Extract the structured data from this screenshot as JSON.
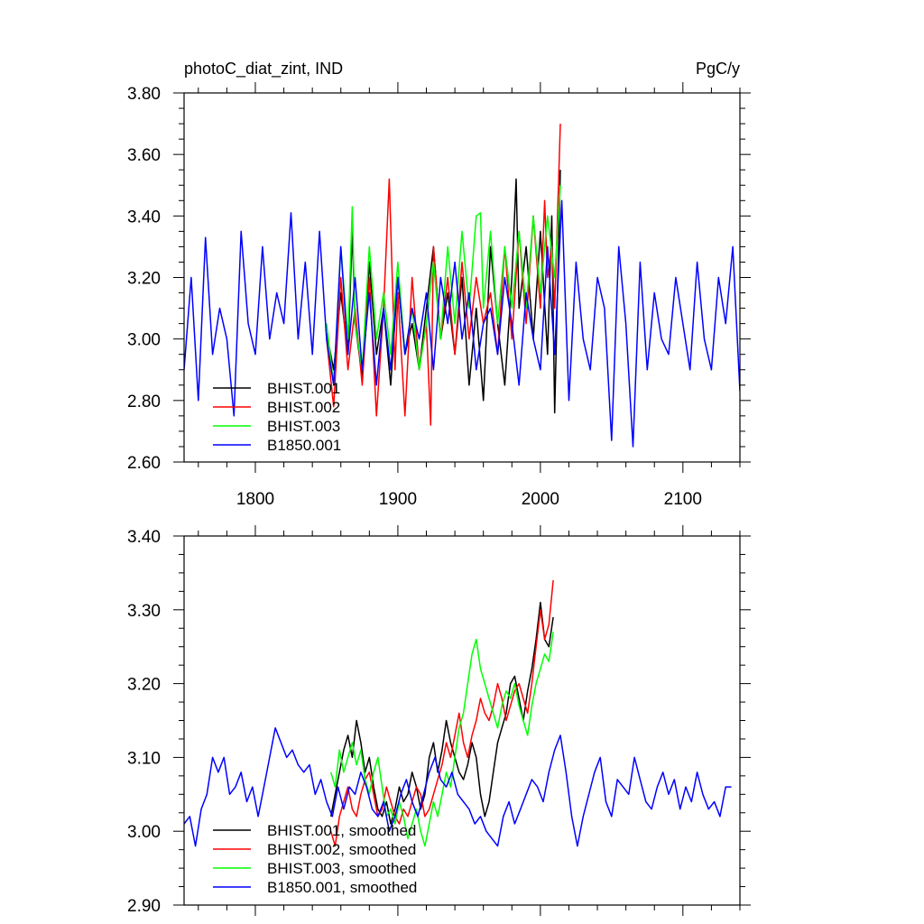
{
  "figure": {
    "top_title_left": "photoC_diat_zint, IND",
    "top_title_right": "PgC/y"
  },
  "chart_data": [
    {
      "type": "line",
      "panel": "top",
      "xlim": [
        1750,
        2140
      ],
      "ylim": [
        2.6,
        3.8
      ],
      "xticks": [
        1800,
        1900,
        2000,
        2100
      ],
      "xtick_labels": [
        "1800",
        "1900",
        "2000",
        "2100"
      ],
      "yticks": [
        2.6,
        2.8,
        3.0,
        3.2,
        3.4,
        3.6,
        3.8
      ],
      "ytick_labels": [
        "2.60",
        "2.80",
        "3.00",
        "3.20",
        "3.40",
        "3.60",
        "3.80"
      ],
      "legend_placement": "lower-left",
      "series": [
        {
          "name": "BHIST.001",
          "color": "#000000",
          "x": [
            1850,
            1855,
            1860,
            1865,
            1868,
            1870,
            1875,
            1880,
            1885,
            1890,
            1895,
            1900,
            1905,
            1910,
            1915,
            1920,
            1925,
            1930,
            1935,
            1940,
            1945,
            1950,
            1955,
            1960,
            1965,
            1970,
            1975,
            1980,
            1983,
            1985,
            1990,
            1995,
            2000,
            2005,
            2008,
            2010,
            2014
          ],
          "values": [
            3.02,
            2.9,
            3.15,
            2.95,
            3.35,
            3.05,
            2.88,
            3.25,
            2.95,
            3.1,
            2.85,
            3.2,
            2.95,
            3.05,
            2.9,
            3.1,
            3.3,
            3.0,
            3.15,
            2.95,
            3.2,
            2.85,
            3.1,
            2.8,
            3.3,
            3.05,
            2.85,
            3.2,
            3.52,
            3.1,
            3.3,
            3.0,
            3.35,
            2.95,
            3.4,
            2.76,
            3.55
          ]
        },
        {
          "name": "BHIST.002",
          "color": "#ff0000",
          "x": [
            1850,
            1855,
            1860,
            1865,
            1870,
            1875,
            1880,
            1885,
            1890,
            1894,
            1898,
            1900,
            1905,
            1910,
            1915,
            1920,
            1923,
            1925,
            1930,
            1935,
            1940,
            1945,
            1950,
            1955,
            1960,
            1965,
            1970,
            1975,
            1980,
            1985,
            1990,
            1995,
            2000,
            2003,
            2005,
            2008,
            2010,
            2014
          ],
          "values": [
            3.0,
            2.78,
            3.2,
            2.9,
            3.1,
            2.85,
            3.2,
            2.75,
            3.1,
            3.52,
            2.9,
            3.15,
            2.75,
            3.2,
            2.9,
            3.05,
            2.72,
            3.3,
            3.0,
            3.2,
            2.95,
            3.25,
            3.0,
            3.2,
            3.05,
            3.15,
            2.95,
            3.3,
            3.0,
            3.35,
            3.05,
            3.4,
            3.1,
            3.45,
            3.2,
            3.3,
            3.1,
            3.7
          ]
        },
        {
          "name": "BHIST.003",
          "color": "#00ff00",
          "x": [
            1850,
            1855,
            1860,
            1865,
            1868,
            1870,
            1875,
            1880,
            1885,
            1890,
            1895,
            1900,
            1905,
            1910,
            1915,
            1920,
            1925,
            1930,
            1935,
            1940,
            1945,
            1950,
            1955,
            1958,
            1960,
            1965,
            1970,
            1975,
            1980,
            1985,
            1990,
            1995,
            2000,
            2005,
            2010,
            2014
          ],
          "values": [
            3.05,
            2.85,
            3.3,
            3.0,
            3.43,
            3.05,
            2.9,
            3.3,
            3.0,
            3.15,
            2.95,
            3.25,
            2.95,
            3.1,
            2.9,
            3.05,
            3.25,
            3.0,
            3.3,
            3.05,
            3.35,
            3.1,
            3.4,
            3.41,
            3.1,
            3.35,
            3.05,
            3.3,
            3.1,
            3.35,
            3.1,
            3.4,
            3.15,
            3.4,
            3.2,
            3.5
          ]
        },
        {
          "name": "B1850.001",
          "color": "#0000ff",
          "x": [
            1750,
            1755,
            1760,
            1765,
            1770,
            1775,
            1780,
            1785,
            1790,
            1795,
            1800,
            1805,
            1810,
            1815,
            1820,
            1825,
            1830,
            1835,
            1840,
            1845,
            1850,
            1855,
            1860,
            1865,
            1870,
            1875,
            1880,
            1885,
            1890,
            1895,
            1900,
            1905,
            1910,
            1915,
            1920,
            1925,
            1930,
            1935,
            1940,
            1945,
            1950,
            1955,
            1960,
            1965,
            1970,
            1975,
            1980,
            1985,
            1990,
            1995,
            2000,
            2005,
            2010,
            2015,
            2020,
            2025,
            2030,
            2035,
            2040,
            2045,
            2050,
            2055,
            2060,
            2065,
            2070,
            2075,
            2080,
            2085,
            2090,
            2095,
            2100,
            2105,
            2110,
            2115,
            2120,
            2125,
            2130,
            2135,
            2140
          ],
          "values": [
            2.9,
            3.2,
            2.8,
            3.33,
            2.95,
            3.1,
            3.0,
            2.75,
            3.35,
            3.05,
            2.95,
            3.3,
            3.0,
            3.15,
            3.05,
            3.41,
            3.0,
            3.25,
            2.95,
            3.35,
            3.0,
            2.85,
            3.3,
            2.95,
            3.2,
            2.9,
            3.15,
            2.85,
            3.1,
            2.9,
            3.2,
            2.95,
            3.1,
            3.0,
            3.15,
            2.9,
            3.2,
            3.05,
            3.25,
            3.0,
            3.15,
            2.9,
            3.05,
            3.1,
            2.95,
            3.2,
            3.05,
            2.85,
            3.15,
            3.0,
            2.9,
            3.3,
            2.95,
            3.45,
            2.8,
            3.25,
            3.0,
            2.9,
            3.2,
            3.1,
            2.67,
            3.3,
            3.05,
            2.65,
            3.25,
            2.9,
            3.15,
            3.0,
            2.95,
            3.2,
            3.05,
            2.9,
            3.25,
            3.0,
            2.9,
            3.2,
            3.05,
            3.3,
            2.83
          ]
        }
      ]
    },
    {
      "type": "line",
      "panel": "bottom",
      "xlim": [
        1750,
        2140
      ],
      "ylim": [
        2.9,
        3.4
      ],
      "xticks": [
        1800,
        1900,
        2000,
        2100
      ],
      "yticks": [
        2.9,
        3.0,
        3.1,
        3.2,
        3.3,
        3.4
      ],
      "ytick_labels": [
        "2.90",
        "3.00",
        "3.10",
        "3.20",
        "3.30",
        "3.40"
      ],
      "legend_placement": "lower-left",
      "series": [
        {
          "name": "BHIST.001, smoothed",
          "color": "#000000",
          "x": [
            1853,
            1856,
            1859,
            1862,
            1865,
            1868,
            1871,
            1874,
            1877,
            1880,
            1883,
            1886,
            1889,
            1892,
            1895,
            1898,
            1901,
            1904,
            1907,
            1910,
            1913,
            1916,
            1919,
            1922,
            1925,
            1928,
            1931,
            1934,
            1937,
            1940,
            1943,
            1946,
            1949,
            1952,
            1955,
            1958,
            1961,
            1964,
            1967,
            1970,
            1973,
            1976,
            1979,
            1982,
            1985,
            1988,
            1991,
            1994,
            1997,
            2000,
            2003,
            2006,
            2009
          ],
          "values": [
            3.02,
            3.05,
            3.08,
            3.11,
            3.13,
            3.1,
            3.15,
            3.12,
            3.08,
            3.1,
            3.06,
            3.03,
            3.02,
            3.04,
            3.01,
            3.03,
            3.06,
            3.04,
            3.05,
            3.08,
            3.06,
            3.03,
            3.05,
            3.1,
            3.12,
            3.08,
            3.11,
            3.15,
            3.12,
            3.1,
            3.08,
            3.07,
            3.09,
            3.12,
            3.1,
            3.05,
            3.02,
            3.04,
            3.08,
            3.12,
            3.14,
            3.16,
            3.2,
            3.21,
            3.18,
            3.15,
            3.19,
            3.22,
            3.26,
            3.31,
            3.26,
            3.25,
            3.29
          ]
        },
        {
          "name": "BHIST.002, smoothed",
          "color": "#ff0000",
          "x": [
            1853,
            1856,
            1859,
            1862,
            1865,
            1868,
            1871,
            1874,
            1877,
            1880,
            1883,
            1886,
            1889,
            1892,
            1895,
            1898,
            1901,
            1904,
            1907,
            1910,
            1913,
            1916,
            1919,
            1922,
            1925,
            1928,
            1931,
            1934,
            1937,
            1940,
            1943,
            1946,
            1949,
            1952,
            1955,
            1958,
            1961,
            1964,
            1967,
            1970,
            1973,
            1976,
            1979,
            1982,
            1985,
            1988,
            1991,
            1994,
            1997,
            2000,
            2003,
            2006,
            2009
          ],
          "values": [
            3.0,
            2.98,
            3.02,
            3.04,
            3.06,
            3.03,
            3.02,
            3.05,
            3.07,
            3.08,
            3.05,
            3.02,
            3.03,
            3.06,
            3.04,
            3.02,
            3.01,
            3.03,
            3.02,
            3.04,
            3.06,
            3.05,
            3.02,
            3.03,
            3.05,
            3.07,
            3.09,
            3.12,
            3.1,
            3.13,
            3.16,
            3.12,
            3.1,
            3.13,
            3.15,
            3.18,
            3.16,
            3.15,
            3.17,
            3.2,
            3.18,
            3.15,
            3.17,
            3.19,
            3.2,
            3.18,
            3.16,
            3.2,
            3.25,
            3.3,
            3.26,
            3.28,
            3.34
          ]
        },
        {
          "name": "BHIST.003, smoothed",
          "color": "#00ff00",
          "x": [
            1853,
            1856,
            1859,
            1862,
            1865,
            1868,
            1871,
            1874,
            1877,
            1880,
            1883,
            1886,
            1889,
            1892,
            1895,
            1898,
            1901,
            1904,
            1907,
            1910,
            1913,
            1916,
            1919,
            1922,
            1925,
            1928,
            1931,
            1934,
            1937,
            1940,
            1943,
            1946,
            1949,
            1952,
            1955,
            1958,
            1961,
            1964,
            1967,
            1970,
            1973,
            1976,
            1979,
            1982,
            1985,
            1988,
            1991,
            1994,
            1997,
            2000,
            2003,
            2006,
            2009
          ],
          "values": [
            3.08,
            3.06,
            3.11,
            3.08,
            3.1,
            3.12,
            3.09,
            3.11,
            3.07,
            3.05,
            3.08,
            3.1,
            3.06,
            3.02,
            3.03,
            3.01,
            3.04,
            3.02,
            2.99,
            3.01,
            3.03,
            3.0,
            2.98,
            3.01,
            3.04,
            3.02,
            3.05,
            3.08,
            3.06,
            3.1,
            3.14,
            3.16,
            3.2,
            3.24,
            3.26,
            3.22,
            3.2,
            3.18,
            3.16,
            3.14,
            3.17,
            3.19,
            3.18,
            3.2,
            3.17,
            3.15,
            3.13,
            3.17,
            3.2,
            3.22,
            3.24,
            3.23,
            3.27
          ]
        },
        {
          "name": "B1850.001, smoothed",
          "color": "#0000ff",
          "x": [
            1750,
            1754,
            1758,
            1762,
            1766,
            1770,
            1774,
            1778,
            1782,
            1786,
            1790,
            1794,
            1798,
            1802,
            1806,
            1810,
            1814,
            1818,
            1822,
            1826,
            1830,
            1834,
            1838,
            1842,
            1846,
            1850,
            1854,
            1858,
            1862,
            1866,
            1870,
            1874,
            1878,
            1882,
            1886,
            1890,
            1894,
            1898,
            1902,
            1906,
            1910,
            1914,
            1918,
            1922,
            1926,
            1930,
            1934,
            1938,
            1942,
            1946,
            1950,
            1954,
            1958,
            1962,
            1966,
            1970,
            1974,
            1978,
            1982,
            1986,
            1990,
            1994,
            1998,
            2002,
            2006,
            2010,
            2014,
            2018,
            2022,
            2026,
            2030,
            2034,
            2038,
            2042,
            2046,
            2050,
            2054,
            2058,
            2062,
            2066,
            2070,
            2074,
            2078,
            2082,
            2086,
            2090,
            2094,
            2098,
            2102,
            2106,
            2110,
            2114,
            2118,
            2122,
            2126,
            2130,
            2134
          ],
          "values": [
            3.01,
            3.02,
            2.98,
            3.03,
            3.05,
            3.1,
            3.08,
            3.1,
            3.05,
            3.06,
            3.08,
            3.04,
            3.06,
            3.02,
            3.06,
            3.1,
            3.14,
            3.12,
            3.1,
            3.11,
            3.09,
            3.08,
            3.09,
            3.05,
            3.07,
            3.04,
            3.02,
            3.06,
            3.03,
            3.06,
            3.05,
            3.08,
            3.06,
            3.03,
            3.02,
            3.04,
            3.0,
            3.02,
            3.05,
            3.07,
            3.04,
            3.02,
            3.05,
            3.08,
            3.1,
            3.07,
            3.06,
            3.08,
            3.05,
            3.04,
            3.03,
            3.01,
            3.02,
            3.0,
            2.99,
            2.98,
            3.02,
            3.04,
            3.01,
            3.03,
            3.05,
            3.07,
            3.06,
            3.04,
            3.08,
            3.11,
            3.13,
            3.08,
            3.02,
            2.98,
            3.02,
            3.05,
            3.08,
            3.1,
            3.04,
            3.02,
            3.07,
            3.06,
            3.05,
            3.1,
            3.07,
            3.04,
            3.03,
            3.06,
            3.08,
            3.05,
            3.07,
            3.03,
            3.06,
            3.04,
            3.08,
            3.05,
            3.03,
            3.04,
            3.02,
            3.06,
            3.06
          ]
        }
      ]
    }
  ]
}
